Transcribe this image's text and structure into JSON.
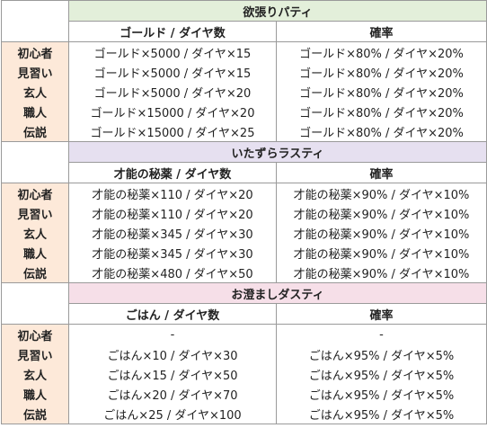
{
  "colors": {
    "section_1_title_bg": "#e3efda",
    "section_2_title_bg": "#e6e0f0",
    "section_3_title_bg": "#f6dfe8",
    "rank_bg": "#fde9d9",
    "border": "#9a9a9a"
  },
  "sections": [
    {
      "title": "欲張りパティ",
      "col_a_header": "ゴールド / ダイヤ数",
      "col_b_header": "確率",
      "rows": [
        {
          "rank": "初心者",
          "a": "ゴールド×5000 / ダイヤ×15",
          "b": "ゴールド×80% / ダイヤ×20%"
        },
        {
          "rank": "見習い",
          "a": "ゴールド×5000 / ダイヤ×15",
          "b": "ゴールド×80% / ダイヤ×20%"
        },
        {
          "rank": "玄人",
          "a": "ゴールド×5000 / ダイヤ×20",
          "b": "ゴールド×80% / ダイヤ×20%"
        },
        {
          "rank": "職人",
          "a": "ゴールド×15000 / ダイヤ×20",
          "b": "ゴールド×80% / ダイヤ×20%"
        },
        {
          "rank": "伝説",
          "a": "ゴールド×15000 / ダイヤ×25",
          "b": "ゴールド×80% / ダイヤ×20%"
        }
      ]
    },
    {
      "title": "いたずらラスティ",
      "col_a_header": "才能の秘薬 / ダイヤ数",
      "col_b_header": "確率",
      "rows": [
        {
          "rank": "初心者",
          "a": "才能の秘薬×110 / ダイヤ×20",
          "b": "才能の秘薬×90% / ダイヤ×10%"
        },
        {
          "rank": "見習い",
          "a": "才能の秘薬×110 / ダイヤ×20",
          "b": "才能の秘薬×90% / ダイヤ×10%"
        },
        {
          "rank": "玄人",
          "a": "才能の秘薬×345 / ダイヤ×30",
          "b": "才能の秘薬×90% / ダイヤ×10%"
        },
        {
          "rank": "職人",
          "a": "才能の秘薬×345 / ダイヤ×30",
          "b": "才能の秘薬×90% / ダイヤ×10%"
        },
        {
          "rank": "伝説",
          "a": "才能の秘薬×480 / ダイヤ×50",
          "b": "才能の秘薬×90% / ダイヤ×10%"
        }
      ]
    },
    {
      "title": "お澄ましダスティ",
      "col_a_header": "ごはん / ダイヤ数",
      "col_b_header": "確率",
      "rows": [
        {
          "rank": "初心者",
          "a": "-",
          "b": "-"
        },
        {
          "rank": "見習い",
          "a": "ごはん×10 / ダイヤ×30",
          "b": "ごはん×95% / ダイヤ×5%"
        },
        {
          "rank": "玄人",
          "a": "ごはん×15 / ダイヤ×50",
          "b": "ごはん×95% / ダイヤ×5%"
        },
        {
          "rank": "職人",
          "a": "ごはん×20 / ダイヤ×70",
          "b": "ごはん×95% / ダイヤ×5%"
        },
        {
          "rank": "伝説",
          "a": "ごはん×25 / ダイヤ×100",
          "b": "ごはん×95% / ダイヤ×5%"
        }
      ]
    }
  ]
}
